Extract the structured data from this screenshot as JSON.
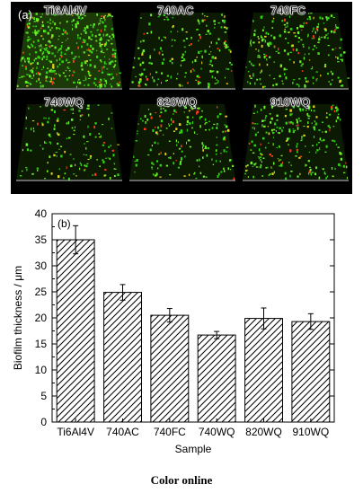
{
  "micrographs": {
    "panel_label": "(a)",
    "tiles": [
      {
        "label": "Ti6Al4V"
      },
      {
        "label": "740AC"
      },
      {
        "label": "740FC"
      },
      {
        "label": "740WQ"
      },
      {
        "label": "820WQ"
      },
      {
        "label": "910WQ"
      }
    ]
  },
  "chart_data": {
    "type": "bar",
    "panel_label": "(b)",
    "categories": [
      "Ti6Al4V",
      "740AC",
      "740FC",
      "740WQ",
      "820WQ",
      "910WQ"
    ],
    "values": [
      35.0,
      24.9,
      20.5,
      16.7,
      19.9,
      19.3
    ],
    "errors": [
      2.7,
      1.5,
      1.3,
      0.7,
      2.0,
      1.5
    ],
    "xlabel": "Sample",
    "ylabel": "Biofilm thickness / μm",
    "ylim": [
      0,
      40
    ],
    "yticks": [
      0,
      5,
      10,
      15,
      20,
      25,
      30,
      35,
      40
    ],
    "bar_fill": "diagonal hatch",
    "grid": false
  },
  "caption": "Color online"
}
